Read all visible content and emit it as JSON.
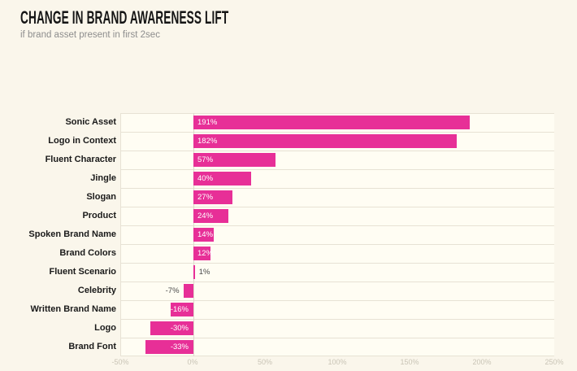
{
  "header": {
    "title": "CHANGE IN BRAND AWARENESS LIFT",
    "subtitle": "if brand asset present in first 2sec"
  },
  "chart_data": {
    "type": "bar",
    "orientation": "horizontal",
    "title": "CHANGE IN BRAND AWARENESS LIFT",
    "subtitle": "if brand asset present in first 2sec",
    "categories": [
      "Sonic Asset",
      "Logo in Context",
      "Fluent Character",
      "Jingle",
      "Slogan",
      "Product",
      "Spoken Brand Name",
      "Brand Colors",
      "Fluent Scenario",
      "Celebrity",
      "Written Brand Name",
      "Logo",
      "Brand Font"
    ],
    "values": [
      191,
      182,
      57,
      40,
      27,
      24,
      14,
      12,
      1,
      -7,
      -16,
      -30,
      -33
    ],
    "value_labels": [
      "191%",
      "182%",
      "57%",
      "40%",
      "27%",
      "24%",
      "14%",
      "12%",
      "1%",
      "-7%",
      "-16%",
      "-30%",
      "-33%"
    ],
    "xlabel": "",
    "ylabel": "",
    "xlim": [
      -50,
      250
    ],
    "x_ticks": [
      {
        "value": -50,
        "label": "-50%"
      },
      {
        "value": 0,
        "label": "0%"
      },
      {
        "value": 50,
        "label": "50%"
      },
      {
        "value": 100,
        "label": "100%"
      },
      {
        "value": 150,
        "label": "150%"
      },
      {
        "value": 200,
        "label": "200%"
      },
      {
        "value": 250,
        "label": "250%"
      }
    ],
    "grid": "horizontal row separators only, baseline at 0%",
    "legend": "none"
  },
  "colors": {
    "page_background": "#FAF6EB",
    "plot_background": "#FFFDF3",
    "bar": "#E72F97",
    "row_separator": "#E7E2D4",
    "baseline": "#DED9CB",
    "title_text": "#151515",
    "subtitle_text": "#8D8D8D",
    "category_text": "#1A1A1A",
    "inside_value_text": "#FFFFFF",
    "outside_value_text": "#4A4A4A",
    "tick_text": "#C9C4B6"
  }
}
